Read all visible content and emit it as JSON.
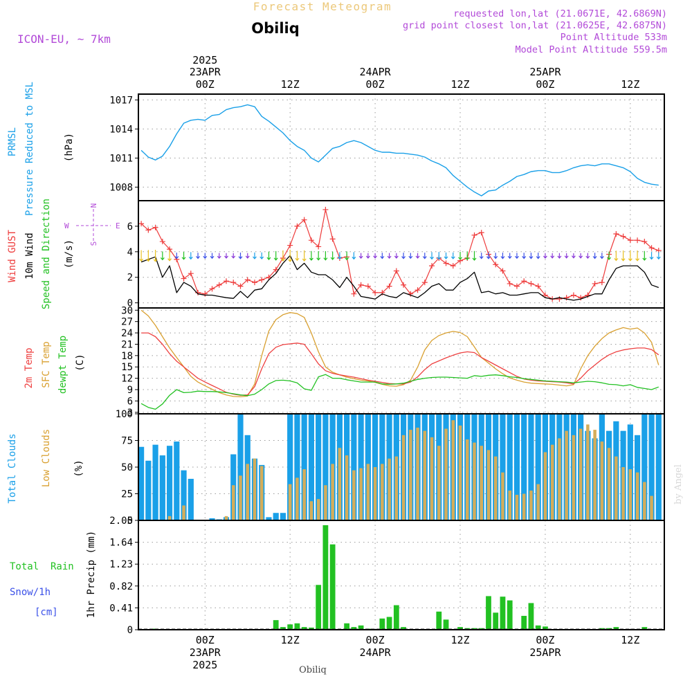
{
  "header": {
    "title": "Forecast Meteogram",
    "location": "Obiliq",
    "model": "ICON-EU, ~ 7km",
    "requested": "requested lon,lat (21.0671E, 42.6869N)",
    "grid_point": "grid point closest lon,lat (21.0625E, 42.6875N)",
    "point_altitude": "Point Altitude 533m",
    "model_altitude": "Model Point Altitude 559.5m"
  },
  "footer": {
    "location": "Obiliq",
    "credit": "by Angel"
  },
  "time_axis": {
    "year": "2025",
    "ticks": [
      {
        "hour": 0,
        "label": "00Z",
        "date": "23APR",
        "year": "2025"
      },
      {
        "hour": 12,
        "label": "12Z",
        "date": "",
        "year": ""
      },
      {
        "hour": 24,
        "label": "00Z",
        "date": "24APR",
        "year": ""
      },
      {
        "hour": 36,
        "label": "12Z",
        "date": "",
        "year": ""
      },
      {
        "hour": 48,
        "label": "00Z",
        "date": "25APR",
        "year": ""
      },
      {
        "hour": 60,
        "label": "12Z",
        "date": "",
        "year": ""
      }
    ]
  },
  "panel_labels": {
    "pressure": [
      "PRMSL",
      "Pressure Reduced to MSL"
    ],
    "pressure_unit": "(hPa)",
    "wind": [
      "Wind GUST",
      "10m Wind",
      "Speed and Direction"
    ],
    "wind_unit": "(m/s)",
    "compass": {
      "n": "N",
      "s": "S",
      "e": "E",
      "w": "W"
    },
    "temp": [
      "2m Temp",
      "SFC Temp",
      "dewpt Temp"
    ],
    "temp_unit": "(C)",
    "cloud": [
      "Total Clouds",
      "Low Clouds"
    ],
    "cloud_unit": "(%)",
    "precip": [
      "Total  Rain",
      "Snow/1h",
      "[cm]"
    ],
    "precip_axis": "1hr Precip (mm)"
  },
  "colors": {
    "pressure": "#1aa0e8",
    "gust": "#ee3a3a",
    "wind": "#000000",
    "temp2m": "#ee4040",
    "tsfc": "#d9a030",
    "dewpt": "#22c122",
    "total_cloud": "#1aa0e8",
    "low_cloud": "#d4ad5a",
    "rain": "#22c122",
    "snow": "#3a50e8",
    "model": "#b24ad8",
    "title": "#ecc87a"
  },
  "chart_data": [
    {
      "type": "line",
      "name": "pressure",
      "ylim": [
        1006.6,
        1017.6
      ],
      "yticks": [
        1008,
        1011,
        1014,
        1017
      ],
      "x": [
        -9,
        -8,
        -7,
        -6,
        -5,
        -4,
        -3,
        -2,
        -1,
        0,
        1,
        2,
        3,
        4,
        5,
        6,
        7,
        8,
        9,
        10,
        11,
        12,
        13,
        14,
        15,
        16,
        17,
        18,
        19,
        20,
        21,
        22,
        23,
        24,
        25,
        26,
        27,
        28,
        29,
        30,
        31,
        32,
        33,
        34,
        35,
        36,
        37,
        38,
        39,
        40,
        41,
        42,
        43,
        44,
        45,
        46,
        47,
        48,
        49,
        50,
        51,
        52,
        53,
        54,
        55,
        56,
        57,
        58,
        59,
        60,
        61,
        62,
        63,
        64
      ],
      "series": [
        {
          "values": [
            1011.8,
            1011.1,
            1010.8,
            1011.2,
            1012.2,
            1013.5,
            1014.6,
            1014.9,
            1015,
            1014.9,
            1015.4,
            1015.5,
            1016,
            1016.2,
            1016.3,
            1016.5,
            1016.3,
            1015.3,
            1014.8,
            1014.2,
            1013.6,
            1012.8,
            1012.2,
            1011.8,
            1011,
            1010.6,
            1011.3,
            1012,
            1012.2,
            1012.6,
            1012.8,
            1012.6,
            1012.2,
            1011.8,
            1011.6,
            1011.6,
            1011.5,
            1011.5,
            1011.4,
            1011.3,
            1011.1,
            1010.7,
            1010.4,
            1010,
            1009.2,
            1008.6,
            1008,
            1007.5,
            1007.1,
            1007.6,
            1007.7,
            1008.2,
            1008.6,
            1009.1,
            1009.3,
            1009.6,
            1009.7,
            1009.7,
            1009.5,
            1009.5,
            1009.7,
            1010.0,
            1010.2,
            1010.3,
            1010.2,
            1010.4,
            1010.4,
            1010.2,
            1010,
            1009.6,
            1008.9,
            1008.5,
            1008.3,
            1008.2
          ]
        }
      ]
    },
    {
      "type": "line",
      "name": "wind",
      "ylim": [
        -0.4,
        8
      ],
      "yticks": [
        0,
        2,
        4,
        6
      ],
      "x": [
        -9,
        -8,
        -7,
        -6,
        -5,
        -4,
        -3,
        -2,
        -1,
        0,
        1,
        2,
        3,
        4,
        5,
        6,
        7,
        8,
        9,
        10,
        11,
        12,
        13,
        14,
        15,
        16,
        17,
        18,
        19,
        20,
        21,
        22,
        23,
        24,
        25,
        26,
        27,
        28,
        29,
        30,
        31,
        32,
        33,
        34,
        35,
        36,
        37,
        38,
        39,
        40,
        41,
        42,
        43,
        44,
        45,
        46,
        47,
        48,
        49,
        50,
        51,
        52,
        53,
        54,
        55,
        56,
        57,
        58,
        59,
        60,
        61,
        62,
        63,
        64
      ],
      "series": [
        {
          "name": "gust",
          "values": [
            6.2,
            5.7,
            5.9,
            4.8,
            4.2,
            3.4,
            1.9,
            2.3,
            0.8,
            0.7,
            1.1,
            1.4,
            1.7,
            1.6,
            1.3,
            1.8,
            1.6,
            1.8,
            2.0,
            2.6,
            3.5,
            4.5,
            6.0,
            6.5,
            4.9,
            4.4,
            7.3,
            5.0,
            3.5,
            3.6,
            0.7,
            1.4,
            1.3,
            0.8,
            0.8,
            1.3,
            2.5,
            1.4,
            0.7,
            1,
            1.6,
            2.9,
            3.5,
            3.1,
            2.9,
            3.3,
            3.5,
            5.3,
            5.5,
            3.8,
            3.0,
            2.5,
            1.5,
            1.3,
            1.7,
            1.5,
            1.3,
            0.6,
            0.3,
            0.3,
            0.4,
            0.6,
            0.4,
            0.6,
            1.5,
            1.6,
            3.8,
            5.4,
            5.2,
            4.9,
            4.9,
            4.8,
            4.3,
            4.1
          ]
        },
        {
          "name": "wind",
          "values": [
            3.2,
            3.4,
            3.6,
            2.0,
            2.9,
            0.8,
            1.6,
            1.3,
            0.7,
            0.6,
            0.6,
            0.5,
            0.4,
            0.35,
            0.9,
            0.4,
            1.0,
            1.1,
            1.8,
            2.3,
            3.1,
            3.7,
            2.6,
            3.1,
            2.4,
            2.2,
            2.2,
            1.8,
            1.2,
            2.0,
            1.3,
            0.5,
            0.4,
            0.3,
            0.7,
            0.5,
            0.4,
            0.8,
            0.6,
            0.4,
            0.8,
            1.3,
            1.5,
            1.0,
            1.0,
            1.6,
            1.9,
            2.4,
            0.8,
            0.9,
            0.7,
            0.8,
            0.6,
            0.6,
            0.7,
            0.8,
            0.8,
            0.4,
            0.3,
            0.4,
            0.3,
            0.2,
            0.3,
            0.5,
            0.7,
            0.7,
            1.8,
            2.7,
            2.9,
            2.9,
            2.9,
            2.4,
            1.4,
            1.2
          ]
        }
      ]
    },
    {
      "type": "line",
      "name": "temperature",
      "ylim": [
        2.6,
        30.6
      ],
      "yticks": [
        3,
        6,
        9,
        12,
        15,
        18,
        21,
        24,
        27,
        30
      ],
      "x": [
        -9,
        -8,
        -7,
        -6,
        -5,
        -4,
        -3,
        -2,
        -1,
        0,
        1,
        2,
        3,
        4,
        5,
        6,
        7,
        8,
        9,
        10,
        11,
        12,
        13,
        14,
        15,
        16,
        17,
        18,
        19,
        20,
        21,
        22,
        23,
        24,
        25,
        26,
        27,
        28,
        29,
        30,
        31,
        32,
        33,
        34,
        35,
        36,
        37,
        38,
        39,
        40,
        41,
        42,
        43,
        44,
        45,
        46,
        47,
        48,
        49,
        50,
        51,
        52,
        53,
        54,
        55,
        56,
        57,
        58,
        59,
        60,
        61,
        62,
        63,
        64
      ],
      "series": [
        {
          "name": "t2m",
          "values": [
            24,
            24,
            23,
            21,
            18.5,
            16.5,
            15,
            13.5,
            12,
            11,
            10.1,
            9.2,
            8.3,
            7.8,
            7.5,
            7.6,
            9.8,
            14.5,
            18.5,
            20.2,
            20.9,
            21.1,
            21.3,
            21,
            18.5,
            15.8,
            14,
            13.3,
            12.9,
            12.6,
            12.3,
            11.9,
            11.5,
            11.2,
            10.9,
            10.6,
            10.5,
            10.5,
            11,
            12.4,
            14.3,
            15.8,
            16.6,
            17.4,
            18.1,
            18.7,
            19,
            18.8,
            17.5,
            16.5,
            15.5,
            14.5,
            13.5,
            12.5,
            11.8,
            11.5,
            11.3,
            11.2,
            11.1,
            11,
            10.8,
            10.5,
            12,
            14,
            15.5,
            17,
            18.2,
            19,
            19.5,
            19.8,
            20,
            20,
            19.6,
            18.2
          ]
        },
        {
          "name": "tsfc",
          "values": [
            30,
            28.5,
            26,
            23,
            20,
            17.5,
            15,
            12.5,
            11,
            10,
            9.1,
            8.2,
            7.6,
            7.2,
            7.1,
            7.3,
            10.5,
            18,
            24.5,
            27.5,
            28.8,
            29.4,
            29.1,
            28.1,
            24,
            19,
            15,
            13.6,
            12.9,
            12.3,
            11.9,
            11.5,
            11.3,
            10.9,
            10.4,
            10,
            9.9,
            10.3,
            11.5,
            15,
            19.5,
            22,
            23.3,
            24,
            24.4,
            24.1,
            23,
            20.3,
            17.5,
            16,
            14.5,
            13.2,
            12.1,
            11.5,
            11,
            10.7,
            10.6,
            10.5,
            10.4,
            10.2,
            10,
            10.3,
            14.5,
            18,
            20.5,
            22.5,
            24,
            24.8,
            25.4,
            25,
            25.3,
            24,
            21.5,
            15.5
          ]
        },
        {
          "name": "dewpt",
          "values": [
            5.3,
            4.3,
            3.8,
            5.2,
            7.5,
            9,
            8.2,
            8.3,
            8.6,
            8.5,
            8.5,
            8.4,
            8.2,
            7.9,
            7.6,
            7.4,
            7.8,
            9,
            10.5,
            11.4,
            11.5,
            11.3,
            10.8,
            9.2,
            8.8,
            12.4,
            13,
            12,
            12,
            11.6,
            11.3,
            11,
            11,
            11,
            10.5,
            10.4,
            10.5,
            10.7,
            11.2,
            11.7,
            12,
            12.2,
            12.3,
            12.3,
            12.2,
            12.1,
            12.0,
            12.7,
            12.5,
            12.8,
            12.9,
            12.7,
            12.4,
            12.2,
            11.9,
            11.7,
            11.5,
            11.3,
            11.2,
            11.1,
            11,
            10.8,
            11,
            11.2,
            11.1,
            10.8,
            10.4,
            10.3,
            10.0,
            10.3,
            9.6,
            9.3,
            9,
            9.7
          ]
        }
      ]
    },
    {
      "type": "bar",
      "name": "clouds",
      "ylim": [
        0,
        100
      ],
      "yticks": [
        0,
        25,
        50,
        75,
        100
      ],
      "x": [
        -9,
        -8,
        -7,
        -6,
        -5,
        -4,
        -3,
        -2,
        -1,
        0,
        1,
        2,
        3,
        4,
        5,
        6,
        7,
        8,
        9,
        10,
        11,
        12,
        13,
        14,
        15,
        16,
        17,
        18,
        19,
        20,
        21,
        22,
        23,
        24,
        25,
        26,
        27,
        28,
        29,
        30,
        31,
        32,
        33,
        34,
        35,
        36,
        37,
        38,
        39,
        40,
        41,
        42,
        43,
        44,
        45,
        46,
        47,
        48,
        49,
        50,
        51,
        52,
        53,
        54,
        55,
        56,
        57,
        58,
        59,
        60,
        61,
        62,
        63,
        64
      ],
      "series": [
        {
          "name": "total",
          "values": [
            69,
            56,
            71,
            61,
            70,
            74,
            47,
            39,
            0,
            0,
            2,
            1,
            3,
            62,
            100,
            80,
            58,
            52,
            3,
            7,
            7,
            100,
            100,
            100,
            100,
            100,
            100,
            100,
            100,
            100,
            100,
            100,
            100,
            100,
            100,
            100,
            100,
            100,
            100,
            100,
            100,
            100,
            100,
            100,
            100,
            100,
            100,
            100,
            100,
            100,
            100,
            100,
            100,
            100,
            100,
            100,
            100,
            100,
            100,
            100,
            100,
            100,
            100,
            84,
            77,
            100,
            84,
            93,
            84,
            90,
            80,
            100,
            100,
            100
          ]
        },
        {
          "name": "low",
          "values": [
            0,
            0,
            0,
            0,
            4,
            0,
            14,
            0,
            0,
            0,
            0,
            0,
            4,
            33,
            42,
            53,
            58,
            51,
            0,
            0,
            0,
            34,
            40,
            48,
            18,
            20,
            33,
            53,
            68,
            61,
            47,
            49,
            53,
            50,
            53,
            58,
            60,
            80,
            85,
            87,
            84,
            78,
            70,
            86,
            94,
            89,
            76,
            73,
            70,
            66,
            60,
            45,
            28,
            24,
            25,
            28,
            34,
            64,
            71,
            77,
            84,
            80,
            86,
            90,
            85,
            74,
            68,
            60,
            50,
            48,
            45,
            36,
            23,
            0
          ]
        }
      ]
    },
    {
      "type": "bar",
      "name": "precipitation",
      "ylim": [
        0,
        2.05
      ],
      "yticks": [
        0,
        0.41,
        0.82,
        1.23,
        1.64,
        2.05
      ],
      "ytick_labels": [
        "0",
        "0.41",
        "0.82",
        "1.23",
        "1.64",
        "2.05"
      ],
      "x": [
        -7,
        10,
        11,
        12,
        13,
        14,
        15,
        16,
        17,
        18,
        19,
        20,
        21,
        22,
        23,
        24,
        25,
        26,
        27,
        28,
        29,
        30,
        31,
        32,
        33,
        34,
        35,
        36,
        37,
        38,
        39,
        40,
        41,
        42,
        43,
        44,
        45,
        46,
        47,
        48,
        49,
        50,
        51,
        52,
        53,
        54,
        55,
        56,
        57,
        58,
        59,
        60,
        61,
        62,
        63,
        64
      ],
      "series": [
        {
          "name": "rain",
          "values": [
            0.02,
            0.18,
            0.05,
            0.1,
            0.12,
            0.05,
            0.04,
            0.84,
            1.96,
            1.6,
            0,
            0.12,
            0.05,
            0.08,
            0.02,
            0,
            0.21,
            0.24,
            0.46,
            0.05,
            0,
            0,
            0,
            0,
            0.34,
            0.19,
            0,
            0.05,
            0.03,
            0.03,
            0.03,
            0.63,
            0.32,
            0.62,
            0.55,
            0,
            0.26,
            0.5,
            0.08,
            0.06,
            0,
            0,
            0,
            0,
            0,
            0,
            0,
            0.03,
            0.03,
            0.05,
            0,
            0,
            0,
            0.05,
            0,
            0
          ]
        }
      ]
    }
  ]
}
